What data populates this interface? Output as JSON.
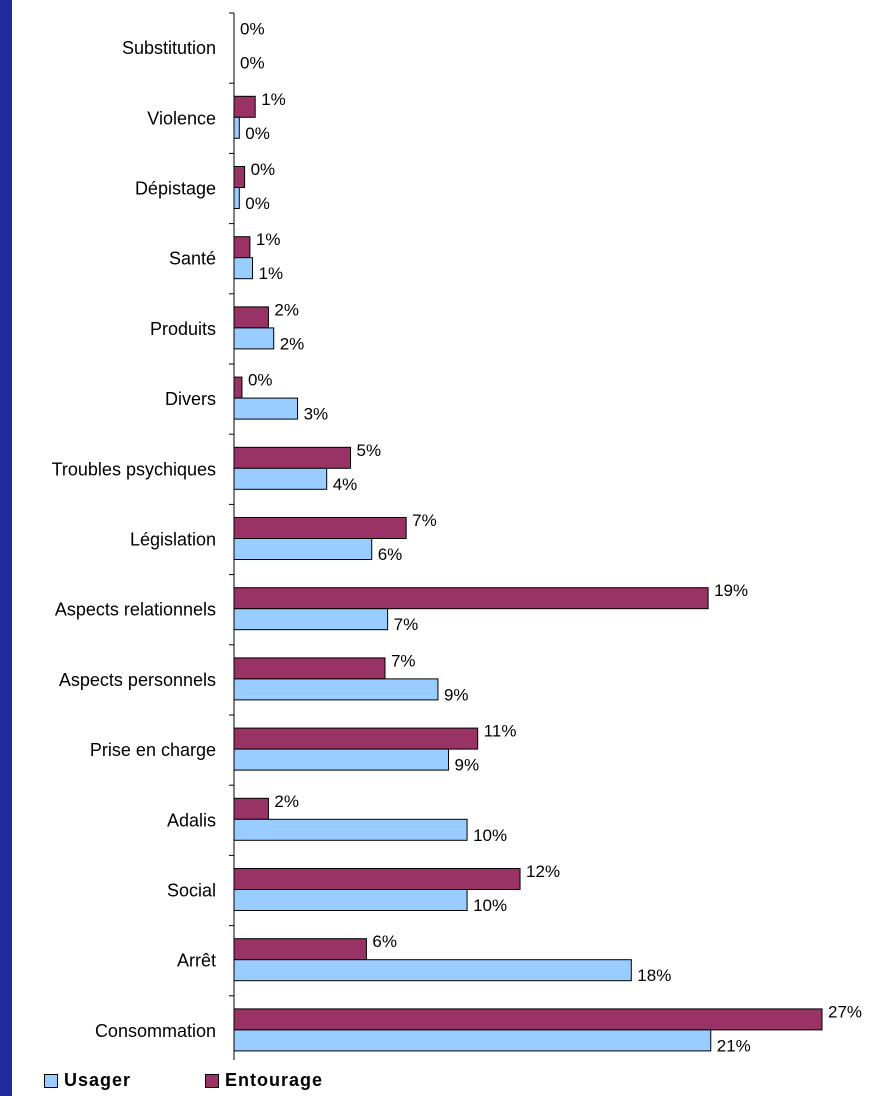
{
  "chart_data": {
    "type": "bar",
    "orientation": "horizontal",
    "categories": [
      "Substitution",
      "Violence",
      "Dépistage",
      "Santé",
      "Produits",
      "Divers",
      "Troubles psychiques",
      "Législation",
      "Aspects relationnels",
      "Aspects personnels",
      "Prise en charge",
      "Adalis",
      "Social",
      "Arrêt",
      "Consommation"
    ],
    "series": [
      {
        "name": "Entourage",
        "color": "#993366",
        "values": [
          0,
          1,
          0,
          1,
          2,
          0,
          5,
          7,
          19,
          7,
          11,
          2,
          12,
          6,
          27
        ],
        "display_values": [
          0,
          0.8,
          0.4,
          0.6,
          1.3,
          0.3,
          4.4,
          6.5,
          17.9,
          5.7,
          9.2,
          1.3,
          10.8,
          5.0,
          22.2
        ],
        "labels": [
          "0%",
          "1%",
          "0%",
          "1%",
          "2%",
          "0%",
          "5%",
          "7%",
          "19%",
          "7%",
          "11%",
          "2%",
          "12%",
          "6%",
          "27%"
        ]
      },
      {
        "name": "Usager",
        "color": "#99ccff",
        "values": [
          0,
          0,
          0,
          1,
          2,
          3,
          4,
          6,
          7,
          9,
          9,
          10,
          10,
          18,
          21
        ],
        "display_values": [
          0,
          0.2,
          0.2,
          0.7,
          1.5,
          2.4,
          3.5,
          5.2,
          5.8,
          7.7,
          8.1,
          8.8,
          8.8,
          15.0,
          18.0
        ],
        "labels": [
          "0%",
          "0%",
          "0%",
          "1%",
          "2%",
          "3%",
          "4%",
          "6%",
          "7%",
          "9%",
          "9%",
          "10%",
          "10%",
          "18%",
          "21%"
        ]
      }
    ],
    "xlim": [
      0,
      27
    ]
  },
  "legend": {
    "usager": "Usager",
    "entourage": "Entourage"
  }
}
